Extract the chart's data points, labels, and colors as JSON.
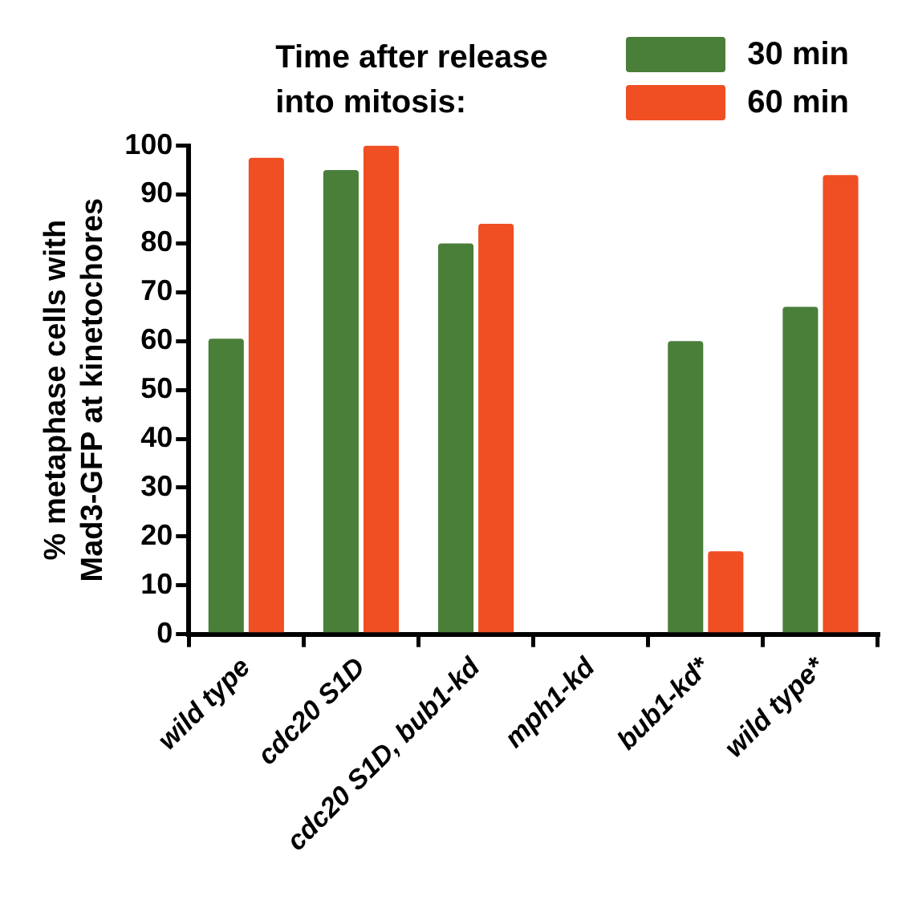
{
  "chart_data": {
    "type": "bar",
    "ylabel": "% metaphase cells with Mad3-GFP at kinetochores",
    "legend_title": "Time after release into mitosis:",
    "legend": "top right",
    "grid": false,
    "categories": [
      "wild type",
      "cdc20 S1D",
      "cdc20 S1D, bub1-kd",
      "mph1-kd",
      "bub1-kd*",
      "wild type*"
    ],
    "ylim": [
      0,
      100
    ],
    "yticks": [
      0,
      10,
      20,
      30,
      40,
      50,
      60,
      70,
      80,
      90,
      100
    ],
    "series": [
      {
        "name": "30 min",
        "color": "#4a7f3a",
        "values": [
          60.5,
          95,
          80,
          0,
          60,
          67
        ]
      },
      {
        "name": "60 min",
        "color": "#f04e23",
        "values": [
          97.5,
          100,
          84,
          0,
          17,
          94
        ]
      }
    ]
  }
}
